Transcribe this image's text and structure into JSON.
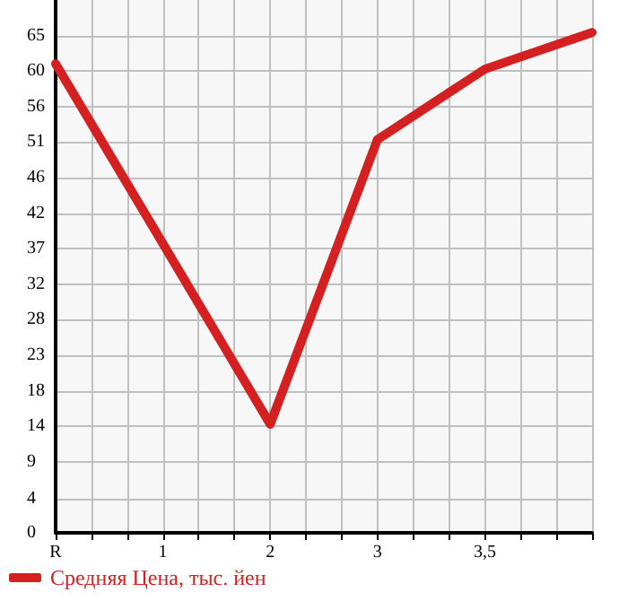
{
  "chart_data": {
    "type": "line",
    "categories": [
      "R",
      "1",
      "2",
      "3",
      "3,5",
      null
    ],
    "series": [
      {
        "name": "Средняя Цена, тыс. йен",
        "color": "#d42020",
        "values": [
          61.3,
          37.8,
          14.2,
          51.4,
          60.6,
          65.4
        ]
      }
    ],
    "ylim": [
      0,
      69.64
    ],
    "yticks": [
      0,
      {
        "value": 4.49,
        "label": "4"
      },
      {
        "value": 9.29,
        "label": "9"
      },
      {
        "value": 13.93,
        "label": "14"
      },
      {
        "value": 18.49,
        "label": "18"
      },
      {
        "value": 23.21,
        "label": "23"
      },
      {
        "value": 27.86,
        "label": "28"
      },
      {
        "value": 32.5,
        "label": "32"
      },
      {
        "value": 37.14,
        "label": "37"
      },
      {
        "value": 41.79,
        "label": "42"
      },
      {
        "value": 46.43,
        "label": "46"
      },
      {
        "value": 51.07,
        "label": "51"
      },
      {
        "value": 55.71,
        "label": "56"
      },
      {
        "value": 60.36,
        "label": "60"
      },
      65
    ],
    "grid": true,
    "legend": "bottom left",
    "marker": "none",
    "line_style": "solid"
  }
}
